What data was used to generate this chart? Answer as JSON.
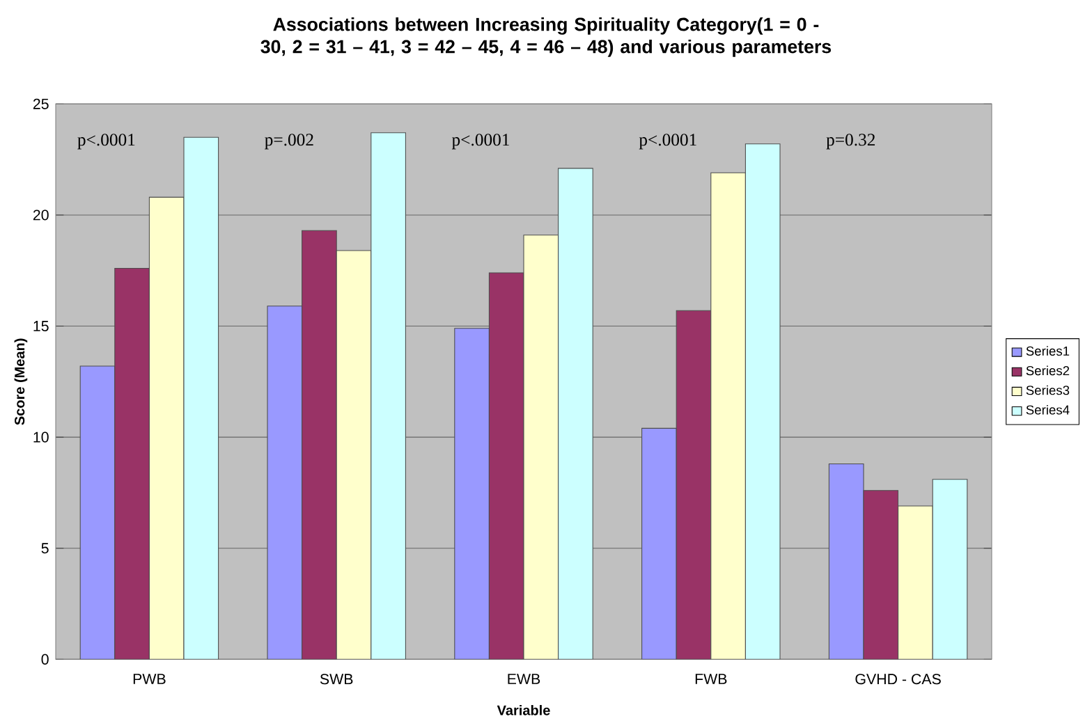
{
  "chart_data": {
    "type": "bar",
    "title": "Associations between Increasing Spirituality Category(1 = 0 - 30, 2 = 31 – 41, 3 = 42 – 45, 4 = 46 – 48) and various parameters",
    "xlabel": "Variable",
    "ylabel": "Score (Mean)",
    "categories": [
      "PWB",
      "SWB",
      "EWB",
      "FWB",
      "GVHD - CAS"
    ],
    "series": [
      {
        "name": "Series1",
        "color": "#9999ff",
        "values": [
          13.2,
          15.9,
          14.9,
          10.4,
          8.8
        ]
      },
      {
        "name": "Series2",
        "color": "#993366",
        "values": [
          17.6,
          19.3,
          17.4,
          15.7,
          7.6
        ]
      },
      {
        "name": "Series3",
        "color": "#ffffcc",
        "values": [
          20.8,
          18.4,
          19.1,
          21.9,
          6.9
        ]
      },
      {
        "name": "Series4",
        "color": "#ccffff",
        "values": [
          23.5,
          23.7,
          22.1,
          23.2,
          8.1
        ]
      }
    ],
    "ylim": [
      0,
      25
    ],
    "yticks": [
      0,
      5,
      10,
      15,
      20,
      25
    ],
    "grid": "y",
    "legend": "right",
    "annotations": [
      "p<.0001",
      "p=.002",
      "p<.0001",
      "p<.0001",
      "p=0.32"
    ]
  }
}
